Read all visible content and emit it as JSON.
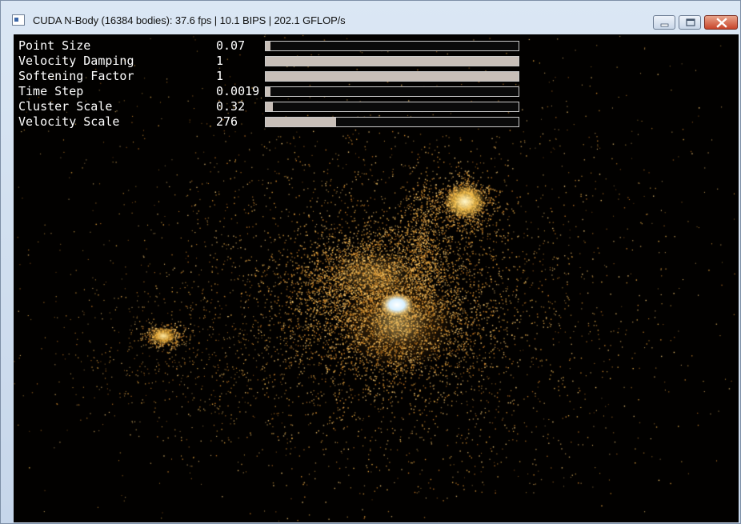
{
  "window": {
    "title": "CUDA N-Body (16384 bodies): 37.6 fps | 10.1 BIPS | 202.1 GFLOP/s",
    "controls": [
      "minimize",
      "maximize",
      "close"
    ]
  },
  "params": [
    {
      "label": "Point Size",
      "value": "0.07",
      "level": 0.005
    },
    {
      "label": "Velocity Damping",
      "value": "1",
      "level": 1.0
    },
    {
      "label": "Softening Factor",
      "value": "1",
      "level": 1.0
    },
    {
      "label": "Time Step",
      "value": "0.0019",
      "level": 0.01
    },
    {
      "label": "Cluster Scale",
      "value": "0.32",
      "level": 0.03
    },
    {
      "label": "Velocity Scale",
      "value": "276",
      "level": 0.28
    }
  ],
  "colors": {
    "background": "#020100",
    "particle": "#e8a53c",
    "core": "#ffffff",
    "slider_fill": "#c8bfb8"
  }
}
